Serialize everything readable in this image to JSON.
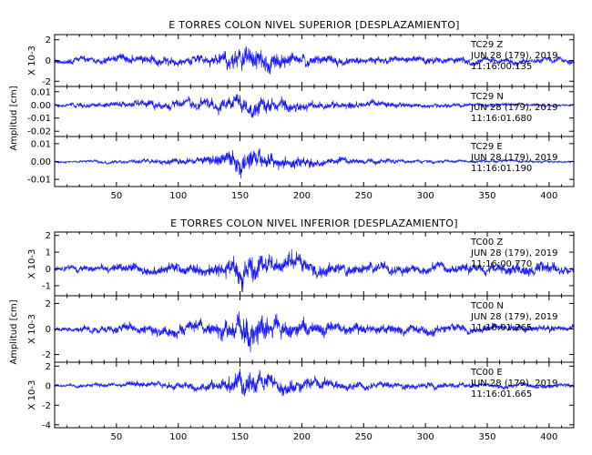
{
  "chart_data": [
    {
      "type": "line",
      "title": "E TORRES COLON NIVEL SUPERIOR [DESPLAZAMIENTO]",
      "ylabel": "Amplitud [cm]",
      "xlim": [
        0,
        420
      ],
      "xticks": [
        "50",
        "100",
        "150",
        "200",
        "250",
        "300",
        "350",
        "400"
      ],
      "series_color": "#0000ff",
      "panels": [
        {
          "name": "TC29 Z",
          "scale_label": "X 10-3",
          "ylim": [
            -2.5,
            2.5
          ],
          "yticks": [
            "2",
            "0",
            "-2"
          ],
          "annotation": [
            "TC29  Z",
            "JUN 28 (179), 2019",
            "11:16:00.135"
          ],
          "amplitude": 1.9,
          "seed": 11,
          "envelope": [
            [
              0,
              0.25
            ],
            [
              40,
              0.3
            ],
            [
              60,
              0.45
            ],
            [
              120,
              0.4
            ],
            [
              150,
              1.0
            ],
            [
              170,
              0.9
            ],
            [
              200,
              0.5
            ],
            [
              250,
              0.35
            ],
            [
              350,
              0.3
            ],
            [
              420,
              0.25
            ]
          ]
        },
        {
          "name": "TC29 N",
          "scale_label": "",
          "ylim": [
            -0.024,
            0.014
          ],
          "yticks": [
            "0.01",
            "0.00",
            "-0.01",
            "-0.02"
          ],
          "annotation": [
            "TC29  N",
            "JUN 28 (179), 2019",
            "11:16:01.680"
          ],
          "amplitude": 0.013,
          "seed": 23,
          "envelope": [
            [
              0,
              0.15
            ],
            [
              60,
              0.4
            ],
            [
              130,
              0.6
            ],
            [
              152,
              1.0
            ],
            [
              175,
              0.8
            ],
            [
              210,
              0.45
            ],
            [
              300,
              0.25
            ],
            [
              400,
              0.15
            ],
            [
              420,
              0.1
            ]
          ]
        },
        {
          "name": "TC29 E",
          "scale_label": "",
          "ylim": [
            -0.014,
            0.014
          ],
          "yticks": [
            "0.01",
            "0.00",
            "-0.01"
          ],
          "annotation": [
            "TC29  E",
            "JUN 28 (179), 2019",
            "11:16:01.190"
          ],
          "amplitude": 0.012,
          "seed": 37,
          "envelope": [
            [
              0,
              0.08
            ],
            [
              60,
              0.15
            ],
            [
              120,
              0.35
            ],
            [
              152,
              1.0
            ],
            [
              175,
              0.7
            ],
            [
              220,
              0.3
            ],
            [
              300,
              0.15
            ],
            [
              420,
              0.08
            ]
          ]
        }
      ]
    },
    {
      "type": "line",
      "title": "E TORRES COLON NIVEL INFERIOR [DESPLAZAMIENTO]",
      "ylabel": "Amplitud [cm]",
      "xlim": [
        0,
        420
      ],
      "xticks": [
        "50",
        "100",
        "150",
        "200",
        "250",
        "300",
        "350",
        "400"
      ],
      "series_color": "#0000ff",
      "panels": [
        {
          "name": "TC00 Z",
          "scale_label": "X 10-3",
          "ylim": [
            -1.6,
            2.2
          ],
          "yticks": [
            "2",
            "1",
            "0",
            "-1"
          ],
          "annotation": [
            "TC00  Z",
            "JUN 28 (179), 2019",
            "11:16:00.770"
          ],
          "amplitude": 1.4,
          "seed": 51,
          "envelope": [
            [
              0,
              0.2
            ],
            [
              60,
              0.35
            ],
            [
              130,
              0.5
            ],
            [
              152,
              1.0
            ],
            [
              180,
              0.8
            ],
            [
              230,
              0.45
            ],
            [
              320,
              0.35
            ],
            [
              400,
              0.5
            ],
            [
              420,
              0.3
            ]
          ]
        },
        {
          "name": "TC00 N",
          "scale_label": "X 10-3",
          "ylim": [
            -2.6,
            2.6
          ],
          "yticks": [
            "2",
            "0",
            "-2"
          ],
          "annotation": [
            "TC00  N",
            "JUN 28 (179), 2019",
            "11:16:01.265"
          ],
          "amplitude": 2.1,
          "seed": 67,
          "envelope": [
            [
              0,
              0.15
            ],
            [
              60,
              0.3
            ],
            [
              130,
              0.45
            ],
            [
              152,
              1.0
            ],
            [
              180,
              0.7
            ],
            [
              230,
              0.4
            ],
            [
              320,
              0.3
            ],
            [
              420,
              0.2
            ]
          ]
        },
        {
          "name": "TC00 E",
          "scale_label": "X 10-3",
          "ylim": [
            -4.3,
            2.4
          ],
          "yticks": [
            "2",
            "0",
            "-2",
            "-4"
          ],
          "annotation": [
            "TC00  E",
            "JUN 28 (179), 2019",
            "11:16:01.665"
          ],
          "amplitude": 2.2,
          "seed": 83,
          "envelope": [
            [
              0,
              0.12
            ],
            [
              60,
              0.22
            ],
            [
              130,
              0.4
            ],
            [
              150,
              1.0
            ],
            [
              175,
              0.7
            ],
            [
              230,
              0.35
            ],
            [
              320,
              0.25
            ],
            [
              420,
              0.15
            ]
          ]
        }
      ]
    }
  ]
}
